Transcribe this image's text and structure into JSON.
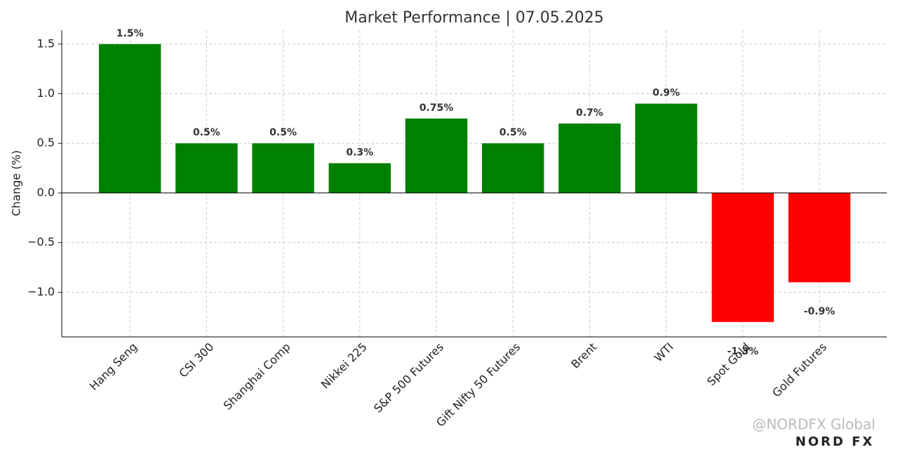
{
  "chart_data": {
    "type": "bar",
    "title": "Market Performance | 07.05.2025",
    "y_label": "Change (%)",
    "categories": [
      "Hang Seng",
      "CSI 300",
      "Shanghai Comp",
      "Nikkei 225",
      "S&P 500 Futures",
      "Gift Nifty 50 Futures",
      "Brent",
      "WTI",
      "Spot Gold",
      "Gold Futures"
    ],
    "values": [
      1.5,
      0.5,
      0.5,
      0.3,
      0.75,
      0.5,
      0.7,
      0.9,
      -1.3,
      -0.9
    ],
    "value_labels": [
      "1.5%",
      "0.5%",
      "0.5%",
      "0.3%",
      "0.75%",
      "0.5%",
      "0.7%",
      "0.9%",
      "-1.3%",
      "-0.9%"
    ],
    "colors": [
      "#008000",
      "#008000",
      "#008000",
      "#008000",
      "#008000",
      "#008000",
      "#008000",
      "#008000",
      "#ff0000",
      "#ff0000"
    ],
    "ylim": [
      -1.45,
      1.64
    ],
    "yticks": [
      {
        "value": -1,
        "label": "−1.0"
      },
      {
        "value": -0.5,
        "label": "−0.5"
      },
      {
        "value": 0,
        "label": "0.0"
      },
      0.5,
      {
        "value": 1,
        "label": "1.0"
      },
      1.5
    ],
    "grid": true
  },
  "watermark": {
    "handle": "@NORDFX Global",
    "logo": "NORD FX"
  }
}
